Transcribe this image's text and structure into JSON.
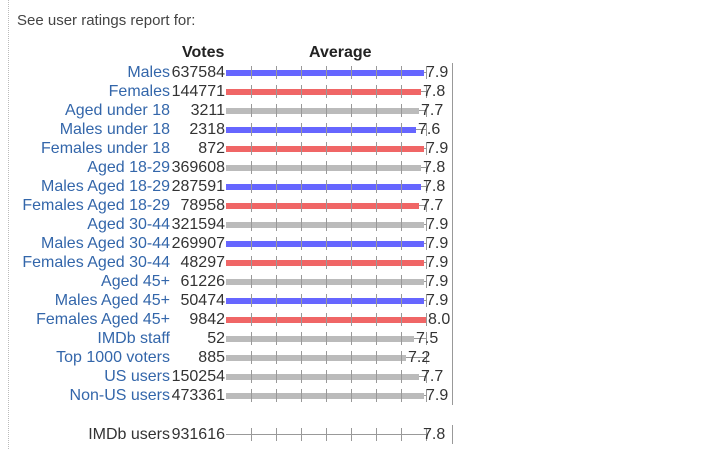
{
  "intro": "See user ratings report for:",
  "headers": {
    "votes": "Votes",
    "average": "Average"
  },
  "colors": {
    "male": "#6666ff",
    "female": "#f06666",
    "neutral": "#bbbbbb",
    "link": "#3366aa"
  },
  "chart_data": {
    "type": "bar",
    "xlim": [
      0,
      8
    ],
    "rows": [
      {
        "label": "Males",
        "votes": "637584",
        "average": 7.9,
        "group": "male"
      },
      {
        "label": "Females",
        "votes": "144771",
        "average": 7.8,
        "group": "female"
      },
      {
        "label": "Aged under 18",
        "votes": "3211",
        "average": 7.7,
        "group": "neutral"
      },
      {
        "label": "Males under 18",
        "votes": "2318",
        "average": 7.6,
        "group": "male"
      },
      {
        "label": "Females under 18",
        "votes": "872",
        "average": 7.9,
        "group": "female"
      },
      {
        "label": "Aged 18-29",
        "votes": "369608",
        "average": 7.8,
        "group": "neutral"
      },
      {
        "label": "Males Aged 18-29",
        "votes": "287591",
        "average": 7.8,
        "group": "male"
      },
      {
        "label": "Females Aged 18-29",
        "votes": "78958",
        "average": 7.7,
        "group": "female"
      },
      {
        "label": "Aged 30-44",
        "votes": "321594",
        "average": 7.9,
        "group": "neutral"
      },
      {
        "label": "Males Aged 30-44",
        "votes": "269907",
        "average": 7.9,
        "group": "male"
      },
      {
        "label": "Females Aged 30-44",
        "votes": "48297",
        "average": 7.9,
        "group": "female"
      },
      {
        "label": "Aged 45+",
        "votes": "61226",
        "average": 7.9,
        "group": "neutral"
      },
      {
        "label": "Males Aged 45+",
        "votes": "50474",
        "average": 7.9,
        "group": "male"
      },
      {
        "label": "Females Aged 45+",
        "votes": "9842",
        "average": 8.0,
        "group": "female"
      },
      {
        "label": "IMDb staff",
        "votes": "52",
        "average": 7.5,
        "group": "neutral"
      },
      {
        "label": "Top 1000 voters",
        "votes": "885",
        "average": 7.2,
        "group": "neutral"
      },
      {
        "label": "US users",
        "votes": "150254",
        "average": 7.7,
        "group": "neutral"
      },
      {
        "label": "Non-US users",
        "votes": "473361",
        "average": 7.9,
        "group": "neutral"
      }
    ],
    "total": {
      "label": "IMDb users",
      "votes": "931616",
      "average": 7.8,
      "group": "neutral"
    }
  }
}
